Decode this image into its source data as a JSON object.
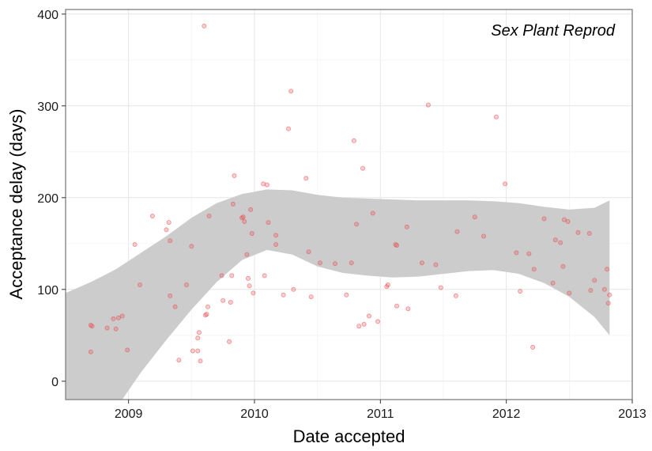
{
  "chart_data": {
    "type": "scatter",
    "title": "",
    "annotation": "Sex Plant Reprod",
    "xlabel": "Date accepted",
    "ylabel": "Acceptance delay (days)",
    "xlim": [
      2008.5,
      2013.0
    ],
    "ylim": [
      -20,
      405
    ],
    "x_ticks": [
      2009,
      2010,
      2011,
      2012,
      2013
    ],
    "x_tick_labels": [
      "2009",
      "2010",
      "2011",
      "2012",
      "2013"
    ],
    "y_ticks": [
      0,
      100,
      200,
      300,
      400
    ],
    "y_tick_labels": [
      "0",
      "100",
      "200",
      "300",
      "400"
    ],
    "grid": true,
    "point_color": "#e8474c",
    "ribbon_color": "#cccccc",
    "points": [
      [
        2008.7,
        61
      ],
      [
        2008.71,
        60
      ],
      [
        2008.7,
        32
      ],
      [
        2008.83,
        58
      ],
      [
        2008.88,
        68
      ],
      [
        2008.9,
        57
      ],
      [
        2008.92,
        69
      ],
      [
        2008.95,
        71
      ],
      [
        2008.99,
        34
      ],
      [
        2009.05,
        149
      ],
      [
        2009.09,
        105
      ],
      [
        2009.19,
        180
      ],
      [
        2009.3,
        165
      ],
      [
        2009.32,
        173
      ],
      [
        2009.33,
        153
      ],
      [
        2009.33,
        93
      ],
      [
        2009.37,
        81
      ],
      [
        2009.4,
        23
      ],
      [
        2009.46,
        105
      ],
      [
        2009.5,
        147
      ],
      [
        2009.51,
        33
      ],
      [
        2009.55,
        33
      ],
      [
        2009.55,
        47
      ],
      [
        2009.56,
        53
      ],
      [
        2009.57,
        22
      ],
      [
        2009.6,
        387
      ],
      [
        2009.61,
        72
      ],
      [
        2009.62,
        73
      ],
      [
        2009.63,
        81
      ],
      [
        2009.64,
        180
      ],
      [
        2009.74,
        115
      ],
      [
        2009.75,
        88
      ],
      [
        2009.8,
        43
      ],
      [
        2009.81,
        86
      ],
      [
        2009.82,
        115
      ],
      [
        2009.83,
        193
      ],
      [
        2009.84,
        224
      ],
      [
        2009.9,
        178
      ],
      [
        2009.91,
        179
      ],
      [
        2009.92,
        174
      ],
      [
        2009.94,
        138
      ],
      [
        2009.95,
        112
      ],
      [
        2009.96,
        104
      ],
      [
        2009.97,
        187
      ],
      [
        2009.98,
        161
      ],
      [
        2009.99,
        96
      ],
      [
        2010.07,
        215
      ],
      [
        2010.08,
        115
      ],
      [
        2010.1,
        214
      ],
      [
        2010.11,
        173
      ],
      [
        2010.17,
        159
      ],
      [
        2010.17,
        149
      ],
      [
        2010.23,
        94
      ],
      [
        2010.27,
        275
      ],
      [
        2010.29,
        316
      ],
      [
        2010.31,
        100
      ],
      [
        2010.41,
        221
      ],
      [
        2010.43,
        141
      ],
      [
        2010.45,
        92
      ],
      [
        2010.52,
        129
      ],
      [
        2010.64,
        128
      ],
      [
        2010.73,
        94
      ],
      [
        2010.77,
        129
      ],
      [
        2010.79,
        262
      ],
      [
        2010.81,
        171
      ],
      [
        2010.83,
        60
      ],
      [
        2010.86,
        232
      ],
      [
        2010.87,
        62
      ],
      [
        2010.91,
        71
      ],
      [
        2010.94,
        183
      ],
      [
        2010.98,
        65
      ],
      [
        2011.05,
        103
      ],
      [
        2011.06,
        105
      ],
      [
        2011.12,
        149
      ],
      [
        2011.13,
        148
      ],
      [
        2011.13,
        82
      ],
      [
        2011.21,
        168
      ],
      [
        2011.22,
        79
      ],
      [
        2011.33,
        129
      ],
      [
        2011.38,
        301
      ],
      [
        2011.44,
        127
      ],
      [
        2011.48,
        102
      ],
      [
        2011.6,
        93
      ],
      [
        2011.61,
        163
      ],
      [
        2011.75,
        179
      ],
      [
        2011.82,
        158
      ],
      [
        2011.92,
        288
      ],
      [
        2011.99,
        215
      ],
      [
        2012.08,
        140
      ],
      [
        2012.11,
        98
      ],
      [
        2012.18,
        139
      ],
      [
        2012.21,
        37
      ],
      [
        2012.22,
        122
      ],
      [
        2012.3,
        177
      ],
      [
        2012.37,
        107
      ],
      [
        2012.39,
        154
      ],
      [
        2012.43,
        151
      ],
      [
        2012.45,
        125
      ],
      [
        2012.46,
        176
      ],
      [
        2012.49,
        174
      ],
      [
        2012.5,
        96
      ],
      [
        2012.57,
        162
      ],
      [
        2012.66,
        161
      ],
      [
        2012.67,
        99
      ],
      [
        2012.7,
        110
      ],
      [
        2012.78,
        100
      ],
      [
        2012.8,
        122
      ],
      [
        2012.81,
        85
      ],
      [
        2012.82,
        94
      ]
    ],
    "smooth_ribbon": {
      "x": [
        2008.5,
        2008.7,
        2008.9,
        2009.1,
        2009.3,
        2009.5,
        2009.7,
        2009.9,
        2010.1,
        2010.3,
        2010.5,
        2010.7,
        2010.9,
        2011.1,
        2011.3,
        2011.5,
        2011.7,
        2011.9,
        2012.1,
        2012.3,
        2012.5,
        2012.7,
        2012.82
      ],
      "lower": [
        -80,
        -60,
        -30,
        10,
        45,
        78,
        108,
        132,
        143,
        138,
        125,
        118,
        115,
        113,
        114,
        117,
        120,
        121,
        117,
        107,
        92,
        70,
        50
      ],
      "upper": [
        96,
        108,
        122,
        140,
        158,
        178,
        194,
        204,
        209,
        208,
        203,
        200,
        199,
        198,
        197,
        197,
        197,
        196,
        194,
        190,
        187,
        189,
        197
      ]
    }
  }
}
